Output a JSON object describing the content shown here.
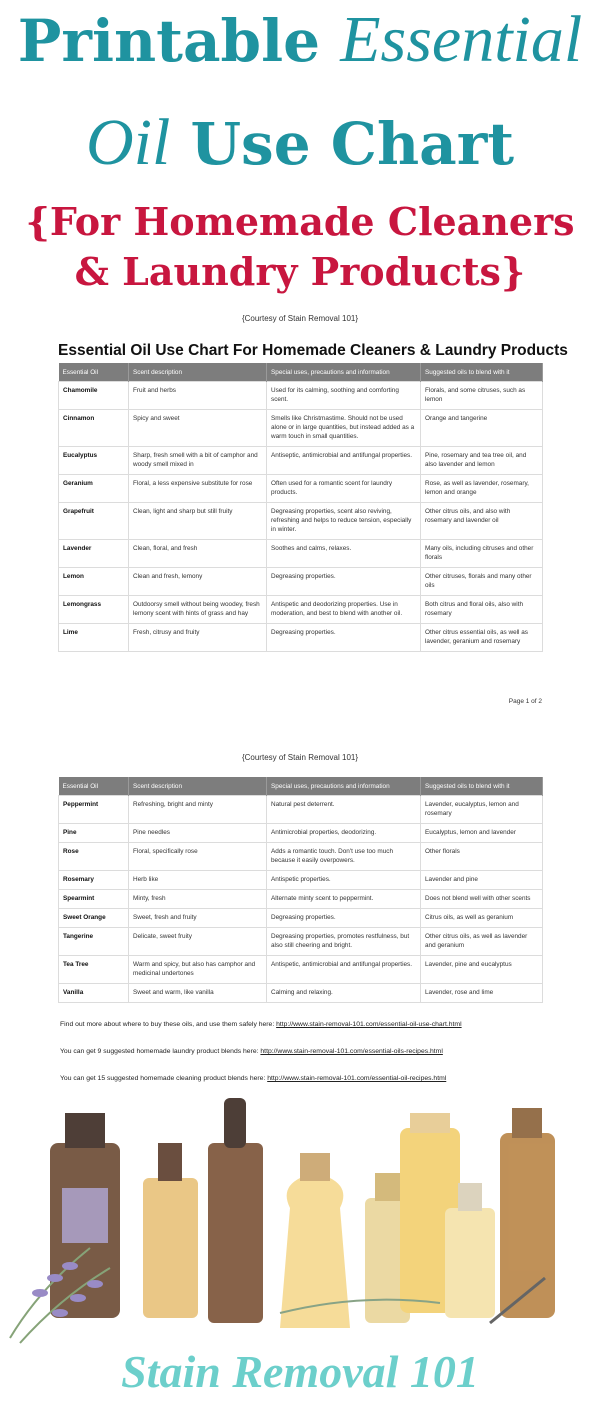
{
  "header": {
    "title_line1_a": "Printable ",
    "title_line1_b": "Essential",
    "title_line2_a": "Oil",
    "title_line2_b": " Use Chart",
    "subtitle_line1": "{For Homemade Cleaners",
    "subtitle_line2": "& Laundry Products}",
    "courtesy": "{Courtesy of Stain Removal 101}",
    "title_color": "#1f93a0",
    "subtitle_color": "#c8163f"
  },
  "table_title": "Essential Oil Use Chart For Homemade Cleaners & Laundry Products",
  "columns": [
    "Essential Oil",
    "Scent description",
    "Special uses, precautions and information",
    "Suggested oils to blend with it"
  ],
  "page1_rows": [
    [
      "Chamomile",
      "Fruit and herbs",
      "Used for its calming, soothing and comforting scent.",
      "Florals, and some citruses, such as lemon"
    ],
    [
      "Cinnamon",
      "Spicy and sweet",
      "Smells like Christmastime. Should not be used alone or in large quantities, but instead added as a warm touch in small quantities.",
      "Orange and tangerine"
    ],
    [
      "Eucalyptus",
      "Sharp, fresh smell with a bit of camphor and woody smell mixed in",
      "Antiseptic, antimicrobial and antifungal properties.",
      "Pine, rosemary and tea tree oil, and also lavender and lemon"
    ],
    [
      "Geranium",
      "Floral, a less expensive substitute for rose",
      "Often used for a romantic scent for laundry products.",
      "Rose, as well as lavender, rosemary, lemon and orange"
    ],
    [
      "Grapefruit",
      "Clean, light and sharp but still fruity",
      "Degreasing properties, scent also reviving, refreshing and helps to reduce tension, especially in winter.",
      "Other citrus oils, and also with rosemary and lavender oil"
    ],
    [
      "Lavender",
      "Clean, floral, and fresh",
      "Soothes and calms, relaxes.",
      "Many oils, including citruses and other florals"
    ],
    [
      "Lemon",
      "Clean and fresh, lemony",
      "Degreasing properties.",
      "Other citruses, florals and many other oils"
    ],
    [
      "Lemongrass",
      "Outdoorsy smell without being woodey, fresh lemony scent with hints of grass and hay",
      "Antispetic and deodorizing properties. Use in moderation, and best to blend with another oil.",
      "Both citrus and floral oils, also with rosemary"
    ],
    [
      "Lime",
      "Fresh, citrusy and fruity",
      "Degreasing properties.",
      "Other citrus essential oils, as well as lavender, geranium and rosemary"
    ]
  ],
  "page_number": "Page 1 of 2",
  "courtesy2": "{Courtesy of Stain Removal 101}",
  "page2_rows": [
    [
      "Peppermint",
      "Refreshing, bright and minty",
      "Natural pest deterrent.",
      "Lavender, eucalyptus, lemon and rosemary"
    ],
    [
      "Pine",
      "Pine needles",
      "Antimicrobial properties, deodorizing.",
      "Eucalyptus, lemon and lavender"
    ],
    [
      "Rose",
      "Floral, specifically rose",
      "Adds a romantic touch. Don't use too much because it easily overpowers.",
      "Other florals"
    ],
    [
      "Rosemary",
      "Herb like",
      "Antispetic properties.",
      "Lavender and pine"
    ],
    [
      "Spearmint",
      "Minty, fresh",
      "Alternate minty scent to peppermint.",
      "Does not blend well with other scents"
    ],
    [
      "Sweet Orange",
      "Sweet, fresh and fruity",
      "Degreasing properties.",
      "Citrus oils, as well as geranium"
    ],
    [
      "Tangerine",
      "Delicate, sweet fruity",
      "Degreasing properties, promotes restfulness, but also still cheering and bright.",
      "Other citrus oils, as well as lavender and geranium"
    ],
    [
      "Tea Tree",
      "Warm and spicy, but also has camphor and medicinal undertones",
      "Antispetic, antimicrobial and antifungal properties.",
      "Lavender, pine and eucalyptus"
    ],
    [
      "Vanilla",
      "Sweet and warm, like vanilla",
      "Calming and relaxing.",
      "Lavender, rose and lime"
    ]
  ],
  "notes": [
    {
      "text": "Find out more about where to buy these oils, and use them safely here: ",
      "link": "http://www.stain-removal-101.com/essential-oil-use-chart.html"
    },
    {
      "text": "You can get 9 suggested homemade laundry product blends here: ",
      "link": "http://www.stain-removal-101.com/essential-oils-recipes.html"
    },
    {
      "text": "You can get 15 suggested homemade cleaning product blends here: ",
      "link": "http://www.stain-removal-101.com/essential-oil-recipes.html"
    }
  ],
  "footer": {
    "logo": "Stain Removal 101",
    "logo_color": "#6ccfcb"
  }
}
